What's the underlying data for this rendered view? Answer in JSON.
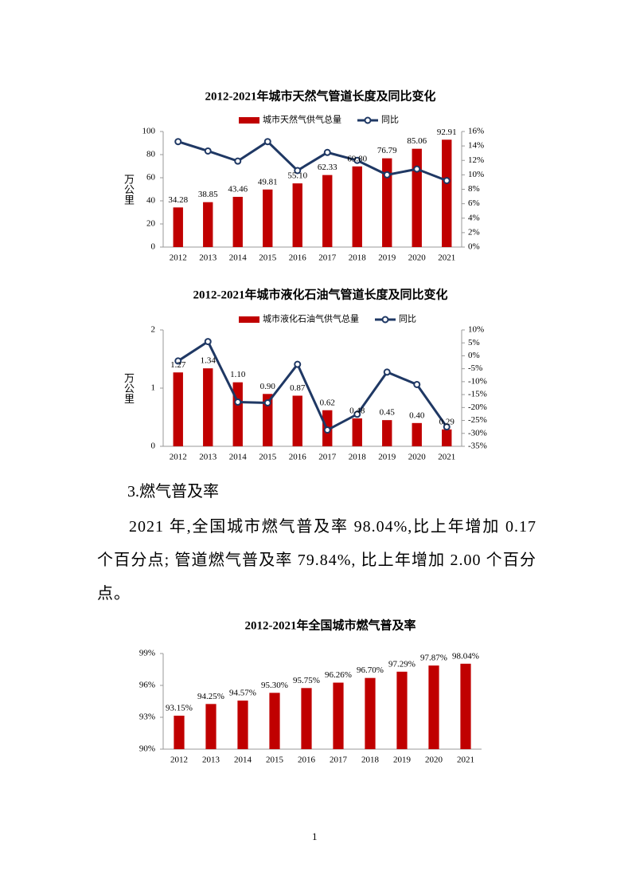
{
  "chart_data": [
    {
      "type": "bar_line",
      "title": "2012-2021年城市天然气管道长度及同比变化",
      "y_label": "万公里",
      "categories": [
        "2012",
        "2013",
        "2014",
        "2015",
        "2016",
        "2017",
        "2018",
        "2019",
        "2020",
        "2021"
      ],
      "series": [
        {
          "name": "城市天然气供气总量",
          "color": "#c00000",
          "type": "bar",
          "values": [
            34.28,
            38.85,
            43.46,
            49.81,
            55.1,
            62.33,
            69.8,
            76.79,
            85.06,
            92.91
          ],
          "value_labels": [
            "34.28",
            "38.85",
            "43.46",
            "49.81",
            "55.10",
            "62.33",
            "69.80",
            "76.79",
            "85.06",
            "92.91"
          ]
        },
        {
          "name": "同比",
          "color": "#1f3864",
          "type": "line",
          "axis": "y2",
          "values": [
            14.6,
            13.3,
            11.9,
            14.6,
            10.6,
            13.1,
            12.0,
            10.0,
            10.8,
            9.2
          ]
        }
      ],
      "ylim": [
        0,
        100
      ],
      "yticks": [
        0,
        20,
        40,
        60,
        80,
        100
      ],
      "y2lim": [
        0,
        16
      ],
      "y2ticks": [
        {
          "value": 0,
          "label": "0%"
        },
        {
          "value": 2,
          "label": "2%"
        },
        {
          "value": 4,
          "label": "4%"
        },
        {
          "value": 6,
          "label": "6%"
        },
        {
          "value": 8,
          "label": "8%"
        },
        {
          "value": 10,
          "label": "10%"
        },
        {
          "value": 12,
          "label": "12%"
        },
        {
          "value": 14,
          "label": "14%"
        },
        {
          "value": 16,
          "label": "16%"
        }
      ],
      "legend": "top"
    },
    {
      "type": "bar_line",
      "title": "2012-2021年城市液化石油气管道长度及同比变化",
      "y_label": "万公里",
      "categories": [
        "2012",
        "2013",
        "2014",
        "2015",
        "2016",
        "2017",
        "2018",
        "2019",
        "2020",
        "2021"
      ],
      "series": [
        {
          "name": "城市液化石油气供气总量",
          "color": "#c00000",
          "type": "bar",
          "values": [
            1.27,
            1.34,
            1.1,
            0.9,
            0.87,
            0.62,
            0.48,
            0.45,
            0.4,
            0.29
          ],
          "value_labels": [
            "1.27",
            "1.34",
            "1.10",
            "0.90",
            "0.87",
            "0.62",
            "0.48",
            "0.45",
            "0.40",
            "0.29"
          ]
        },
        {
          "name": "同比",
          "color": "#1f3864",
          "type": "line",
          "axis": "y2",
          "values": [
            -2,
            5.5,
            -17.9,
            -18.2,
            -3.3,
            -28.7,
            -22.6,
            -6.3,
            -11.1,
            -27.5
          ]
        }
      ],
      "ylim": [
        0,
        2
      ],
      "yticks": [
        0,
        1,
        2
      ],
      "y2lim": [
        -35,
        10
      ],
      "y2ticks": [
        {
          "value": -35,
          "label": "-35%"
        },
        {
          "value": -30,
          "label": "-30%"
        },
        {
          "value": -25,
          "label": "-25%"
        },
        {
          "value": -20,
          "label": "-20%"
        },
        {
          "value": -15,
          "label": "-15%"
        },
        {
          "value": -10,
          "label": "-10%"
        },
        {
          "value": -5,
          "label": "-5%"
        },
        {
          "value": 0,
          "label": "0%"
        },
        {
          "value": 5,
          "label": "5%"
        },
        {
          "value": 10,
          "label": "10%"
        }
      ],
      "legend": "top"
    },
    {
      "type": "bar",
      "title": "2012-2021年全国城市燃气普及率",
      "categories": [
        "2012",
        "2013",
        "2014",
        "2015",
        "2016",
        "2017",
        "2018",
        "2019",
        "2020",
        "2021"
      ],
      "series": [
        {
          "color": "#c00000",
          "type": "bar",
          "values": [
            93.15,
            94.25,
            94.57,
            95.3,
            95.75,
            96.26,
            96.7,
            97.29,
            97.87,
            98.04
          ],
          "value_labels": [
            "93.15%",
            "94.25%",
            "94.57%",
            "95.30%",
            "95.75%",
            "96.26%",
            "96.70%",
            "97.29%",
            "97.87%",
            "98.04%"
          ]
        }
      ],
      "ylim": [
        90,
        99
      ],
      "yticks": [
        {
          "value": 90,
          "label": "90%"
        },
        {
          "value": 93,
          "label": "93%"
        },
        {
          "value": 96,
          "label": "96%"
        },
        {
          "value": 99,
          "label": "99%"
        }
      ]
    }
  ],
  "section": {
    "heading": "3.燃气普及率",
    "paragraph": "2021 年,全国城市燃气普及率 98.04%,比上年增加 0.17 个百分点; 管道燃气普及率 79.84%, 比上年增加 2.00 个百分点。"
  },
  "footer": {
    "page_number": "1"
  }
}
